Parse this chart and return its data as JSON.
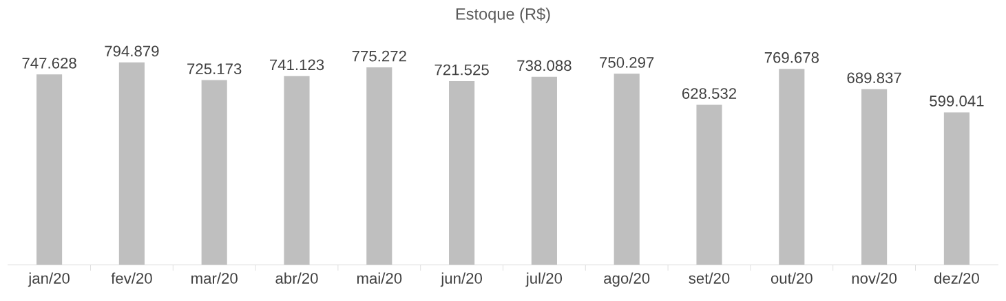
{
  "chart_data": {
    "type": "bar",
    "title": "Estoque (R$)",
    "categories": [
      "jan/20",
      "fev/20",
      "mar/20",
      "abr/20",
      "mai/20",
      "jun/20",
      "jul/20",
      "ago/20",
      "set/20",
      "out/20",
      "nov/20",
      "dez/20"
    ],
    "values": [
      747628,
      794879,
      725173,
      741123,
      775272,
      721525,
      738088,
      750297,
      628532,
      769678,
      689837,
      599041
    ],
    "value_labels": [
      "747.628",
      "794.879",
      "725.173",
      "741.123",
      "775.272",
      "721.525",
      "738.088",
      "750.297",
      "628.532",
      "769.678",
      "689.837",
      "599.041"
    ],
    "color": "#bfbfbf",
    "tick_labels": "x",
    "grid": false,
    "legend": false
  }
}
